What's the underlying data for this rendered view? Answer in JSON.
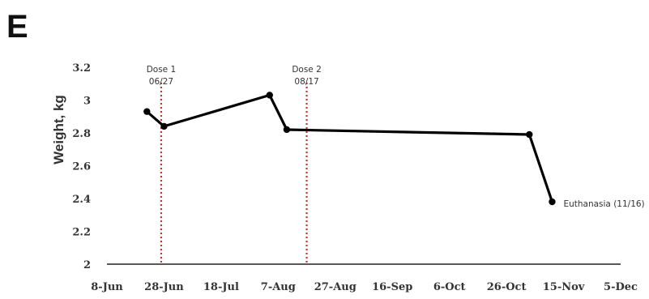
{
  "panel_label": "E",
  "chart_data": {
    "type": "line",
    "title": "",
    "xlabel": "",
    "ylabel": "Weight, kg",
    "x_ticks": [
      "8-Jun",
      "28-Jun",
      "18-Jul",
      "7-Aug",
      "27-Aug",
      "16-Sep",
      "6-Oct",
      "26-Oct",
      "15-Nov",
      "5-Dec"
    ],
    "x_range": [
      "2022-06-08",
      "2022-12-05"
    ],
    "y_ticks": [
      "2",
      "2.2",
      "2.4",
      "2.6",
      "2.8",
      "3",
      "3.2"
    ],
    "ylim": [
      2,
      3.2
    ],
    "grid": false,
    "series": [
      {
        "x": [
          "2022-06-22",
          "2022-06-28",
          "2022-08-04",
          "2022-08-10",
          "2022-11-03",
          "2022-11-11"
        ],
        "y": [
          2.93,
          2.84,
          3.03,
          2.82,
          2.79,
          2.38
        ],
        "color": "#000000"
      }
    ],
    "vlines": [
      {
        "x": "2022-06-27",
        "label_line1": "Dose 1",
        "label_line2": "06/27",
        "color": "#d32f2f",
        "style": "dotted"
      },
      {
        "x": "2022-08-17",
        "label_line1": "Dose 2",
        "label_line2": "08/17",
        "color": "#d32f2f",
        "style": "dotted"
      }
    ],
    "annotations": [
      {
        "x": "2022-11-11",
        "y": 2.38,
        "text": "Euthanasia (11/16)"
      }
    ]
  }
}
